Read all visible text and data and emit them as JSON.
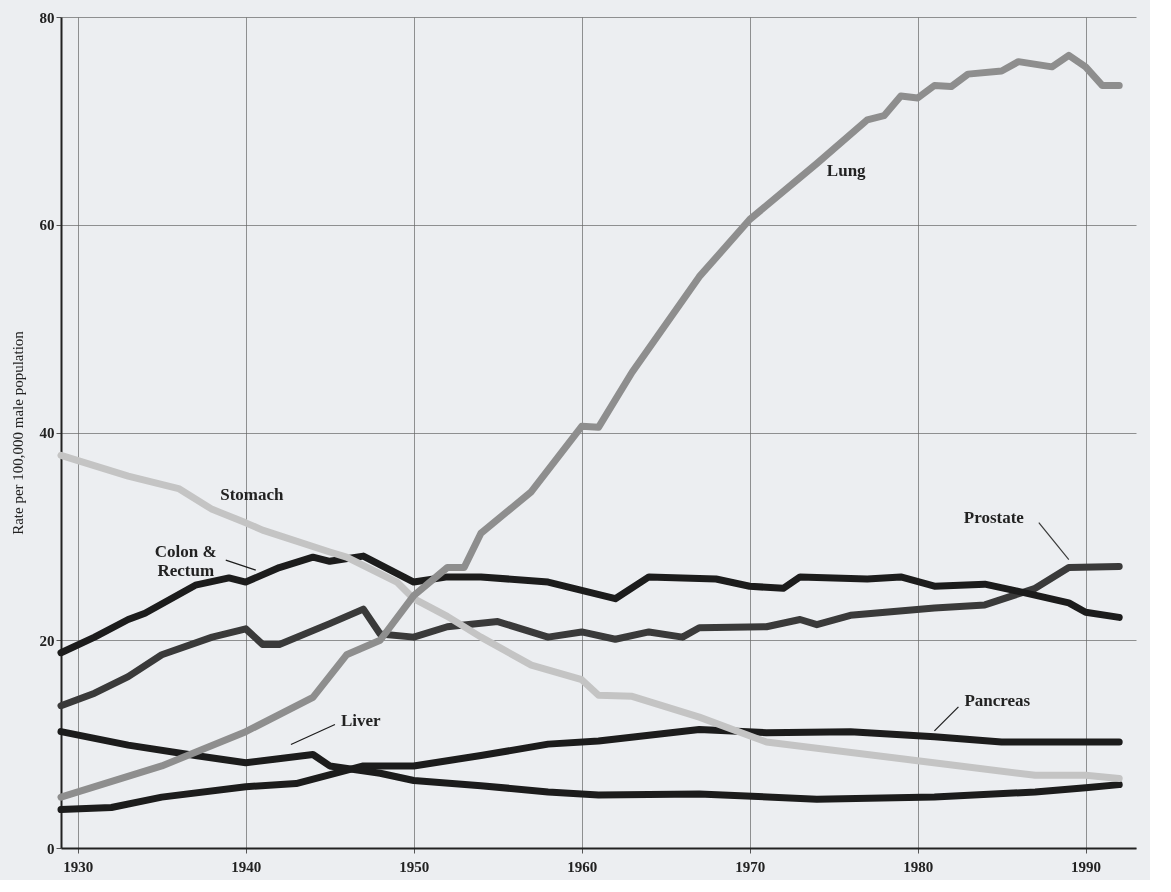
{
  "chart_data": {
    "type": "line",
    "ylabel": "Rate per 100,000 male population",
    "xlim": [
      1929,
      1993
    ],
    "xticks": [
      1930,
      1940,
      1950,
      1960,
      1970,
      1980,
      1990
    ],
    "ylim": [
      0,
      80
    ],
    "yticks": [
      0,
      20,
      40,
      60,
      80
    ],
    "grid": true,
    "series": [
      {
        "name": "Pancreas",
        "color": "#1c1c1c",
        "x": [
          1929,
          1932,
          1935,
          1940,
          1943,
          1947,
          1950,
          1954,
          1958,
          1961,
          1967,
          1971,
          1976,
          1981,
          1985,
          1992
        ],
        "values": [
          3.7,
          3.9,
          4.9,
          5.9,
          6.2,
          7.9,
          7.9,
          8.9,
          10.0,
          10.3,
          11.4,
          11.1,
          11.2,
          10.7,
          10.2,
          10.2
        ]
      },
      {
        "name": "Liver",
        "color": "#1c1c1c",
        "x": [
          1929,
          1933,
          1937,
          1940,
          1944,
          1945,
          1948,
          1950,
          1954,
          1958,
          1961,
          1967,
          1974,
          1981,
          1987,
          1990,
          1992
        ],
        "values": [
          11.2,
          9.9,
          8.9,
          8.2,
          9.0,
          7.9,
          7.2,
          6.5,
          6.0,
          5.4,
          5.1,
          5.2,
          4.7,
          4.9,
          5.4,
          5.8,
          6.1
        ]
      },
      {
        "name": "Prostate",
        "color": "#3a3a3a",
        "x": [
          1929,
          1931,
          1933,
          1935,
          1938,
          1940,
          1941,
          1942,
          1945,
          1947,
          1948,
          1950,
          1952,
          1955,
          1958,
          1960,
          1962,
          1964,
          1966,
          1967,
          1971,
          1973,
          1974,
          1976,
          1981,
          1984,
          1987,
          1989,
          1992
        ],
        "values": [
          13.7,
          14.9,
          16.5,
          18.6,
          20.3,
          21.1,
          19.6,
          19.6,
          21.6,
          23.0,
          20.6,
          20.3,
          21.3,
          21.8,
          20.3,
          20.8,
          20.1,
          20.8,
          20.3,
          21.2,
          21.3,
          22.0,
          21.5,
          22.4,
          23.1,
          23.4,
          25.0,
          27.0,
          27.1
        ]
      },
      {
        "name": "Colon &\nRectum",
        "color": "#1c1c1c",
        "x": [
          1929,
          1931,
          1933,
          1934,
          1937,
          1939,
          1940,
          1942,
          1944,
          1945,
          1947,
          1950,
          1952,
          1954,
          1958,
          1962,
          1964,
          1968,
          1970,
          1972,
          1973,
          1977,
          1979,
          1981,
          1984,
          1986,
          1989,
          1990,
          1992
        ],
        "values": [
          18.8,
          20.3,
          22.0,
          22.6,
          25.3,
          26.0,
          25.6,
          27.0,
          28.0,
          27.6,
          28.1,
          25.6,
          26.1,
          26.1,
          25.6,
          24.0,
          26.1,
          25.9,
          25.2,
          25.0,
          26.1,
          25.9,
          26.1,
          25.2,
          25.4,
          24.7,
          23.6,
          22.7,
          22.2
        ]
      },
      {
        "name": "Stomach",
        "color": "#c4c4c4",
        "x": [
          1929,
          1933,
          1936,
          1938,
          1940,
          1941,
          1945,
          1946,
          1949,
          1950,
          1952,
          1954,
          1957,
          1960,
          1961,
          1963,
          1967,
          1971,
          1980,
          1987,
          1990,
          1992
        ],
        "values": [
          37.8,
          35.8,
          34.6,
          32.6,
          31.3,
          30.6,
          28.5,
          28.0,
          25.6,
          24.0,
          22.3,
          20.3,
          17.6,
          16.2,
          14.7,
          14.6,
          12.6,
          10.2,
          8.4,
          7.0,
          7.0,
          6.7
        ]
      },
      {
        "name": "Lung",
        "color": "#8e8e8e",
        "x": [
          1929,
          1935,
          1940,
          1944,
          1946,
          1948,
          1950,
          1952,
          1953,
          1954,
          1957,
          1960,
          1961,
          1963,
          1967,
          1970,
          1974,
          1977,
          1978,
          1979,
          1980,
          1981,
          1982,
          1983,
          1985,
          1986,
          1988,
          1989,
          1990,
          1991,
          1992
        ],
        "values": [
          4.9,
          7.9,
          11.2,
          14.5,
          18.6,
          20.0,
          24.3,
          27.0,
          27.0,
          30.3,
          34.3,
          40.6,
          40.5,
          45.8,
          55.0,
          60.5,
          65.9,
          70.1,
          70.5,
          72.4,
          72.2,
          73.4,
          73.3,
          74.5,
          74.8,
          75.7,
          75.2,
          76.3,
          75.2,
          73.4,
          73.4
        ]
      }
    ]
  }
}
